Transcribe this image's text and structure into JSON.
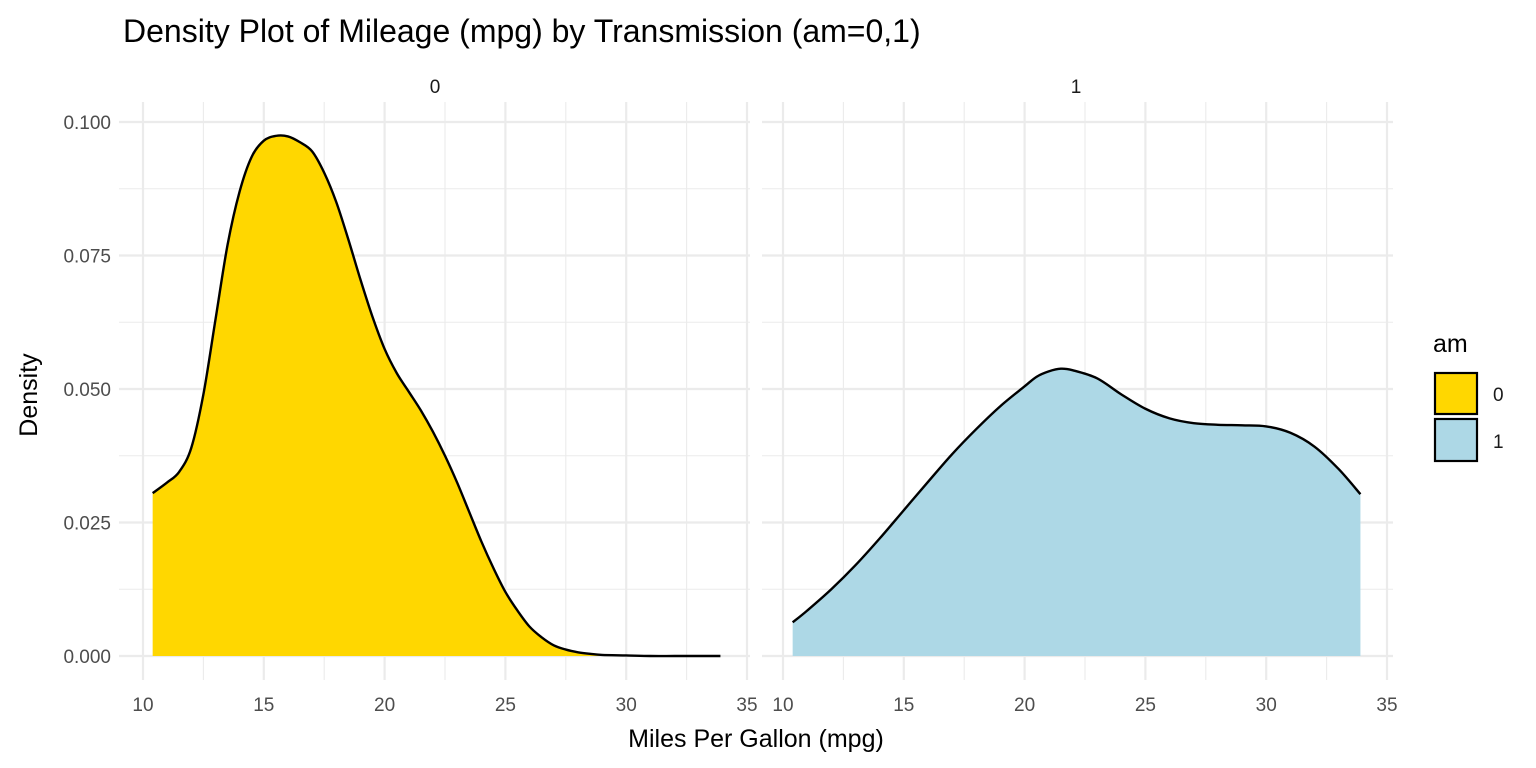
{
  "chart_data": {
    "type": "area",
    "title": "Density Plot of Mileage (mpg) by Transmission (am=0,1)",
    "xlabel": "Miles Per Gallon (mpg)",
    "ylabel": "Density",
    "xlim": [
      10,
      35
    ],
    "ylim": [
      0,
      0.1
    ],
    "x_ticks": [
      "10",
      "15",
      "20",
      "25",
      "30",
      "35"
    ],
    "y_ticks": [
      "0.000",
      "0.025",
      "0.050",
      "0.075",
      "0.100"
    ],
    "grid": true,
    "legend": {
      "title": "am",
      "placement": "right",
      "items": [
        {
          "label": "0",
          "color": "#FFD700"
        },
        {
          "label": "1",
          "color": "#ADD8E6"
        }
      ]
    },
    "panels": [
      {
        "strip_label": "0",
        "fill": "#FFD700",
        "series": {
          "name": "0",
          "x": [
            10.4,
            11.0,
            11.5,
            12.0,
            12.5,
            13.0,
            13.5,
            14.0,
            14.5,
            15.0,
            15.5,
            16.0,
            16.5,
            17.0,
            17.5,
            18.0,
            18.5,
            19.0,
            19.5,
            20.0,
            20.5,
            21.0,
            21.5,
            22.0,
            22.5,
            23.0,
            23.5,
            24.0,
            24.5,
            25.0,
            25.5,
            26.0,
            26.5,
            27.0,
            27.5,
            28.0,
            28.5,
            29.0,
            30.0,
            31.0,
            32.0,
            33.0,
            33.9
          ],
          "y": [
            0.0305,
            0.0325,
            0.0345,
            0.039,
            0.049,
            0.063,
            0.077,
            0.087,
            0.0935,
            0.0965,
            0.0974,
            0.0973,
            0.0962,
            0.0945,
            0.0905,
            0.085,
            0.078,
            0.0705,
            0.0635,
            0.0575,
            0.053,
            0.0495,
            0.046,
            0.042,
            0.0375,
            0.0325,
            0.027,
            0.0215,
            0.0165,
            0.012,
            0.0085,
            0.0055,
            0.0035,
            0.002,
            0.0012,
            0.0007,
            0.0004,
            0.0002,
            0.0001,
            0.0,
            0.0,
            0.0,
            0.0
          ]
        }
      },
      {
        "strip_label": "1",
        "fill": "#ADD8E6",
        "series": {
          "name": "1",
          "x": [
            10.4,
            11.0,
            12.0,
            13.0,
            14.0,
            15.0,
            16.0,
            17.0,
            18.0,
            19.0,
            20.0,
            20.5,
            21.0,
            21.5,
            22.0,
            23.0,
            24.0,
            25.0,
            26.0,
            27.0,
            28.0,
            29.0,
            30.0,
            31.0,
            32.0,
            33.0,
            33.9
          ],
          "y": [
            0.0063,
            0.0085,
            0.0125,
            0.017,
            0.022,
            0.0273,
            0.0326,
            0.0378,
            0.0425,
            0.0468,
            0.0505,
            0.0523,
            0.0533,
            0.0538,
            0.0535,
            0.052,
            0.049,
            0.0463,
            0.0445,
            0.0436,
            0.0433,
            0.0432,
            0.043,
            0.0418,
            0.0392,
            0.035,
            0.0303
          ]
        }
      }
    ]
  }
}
